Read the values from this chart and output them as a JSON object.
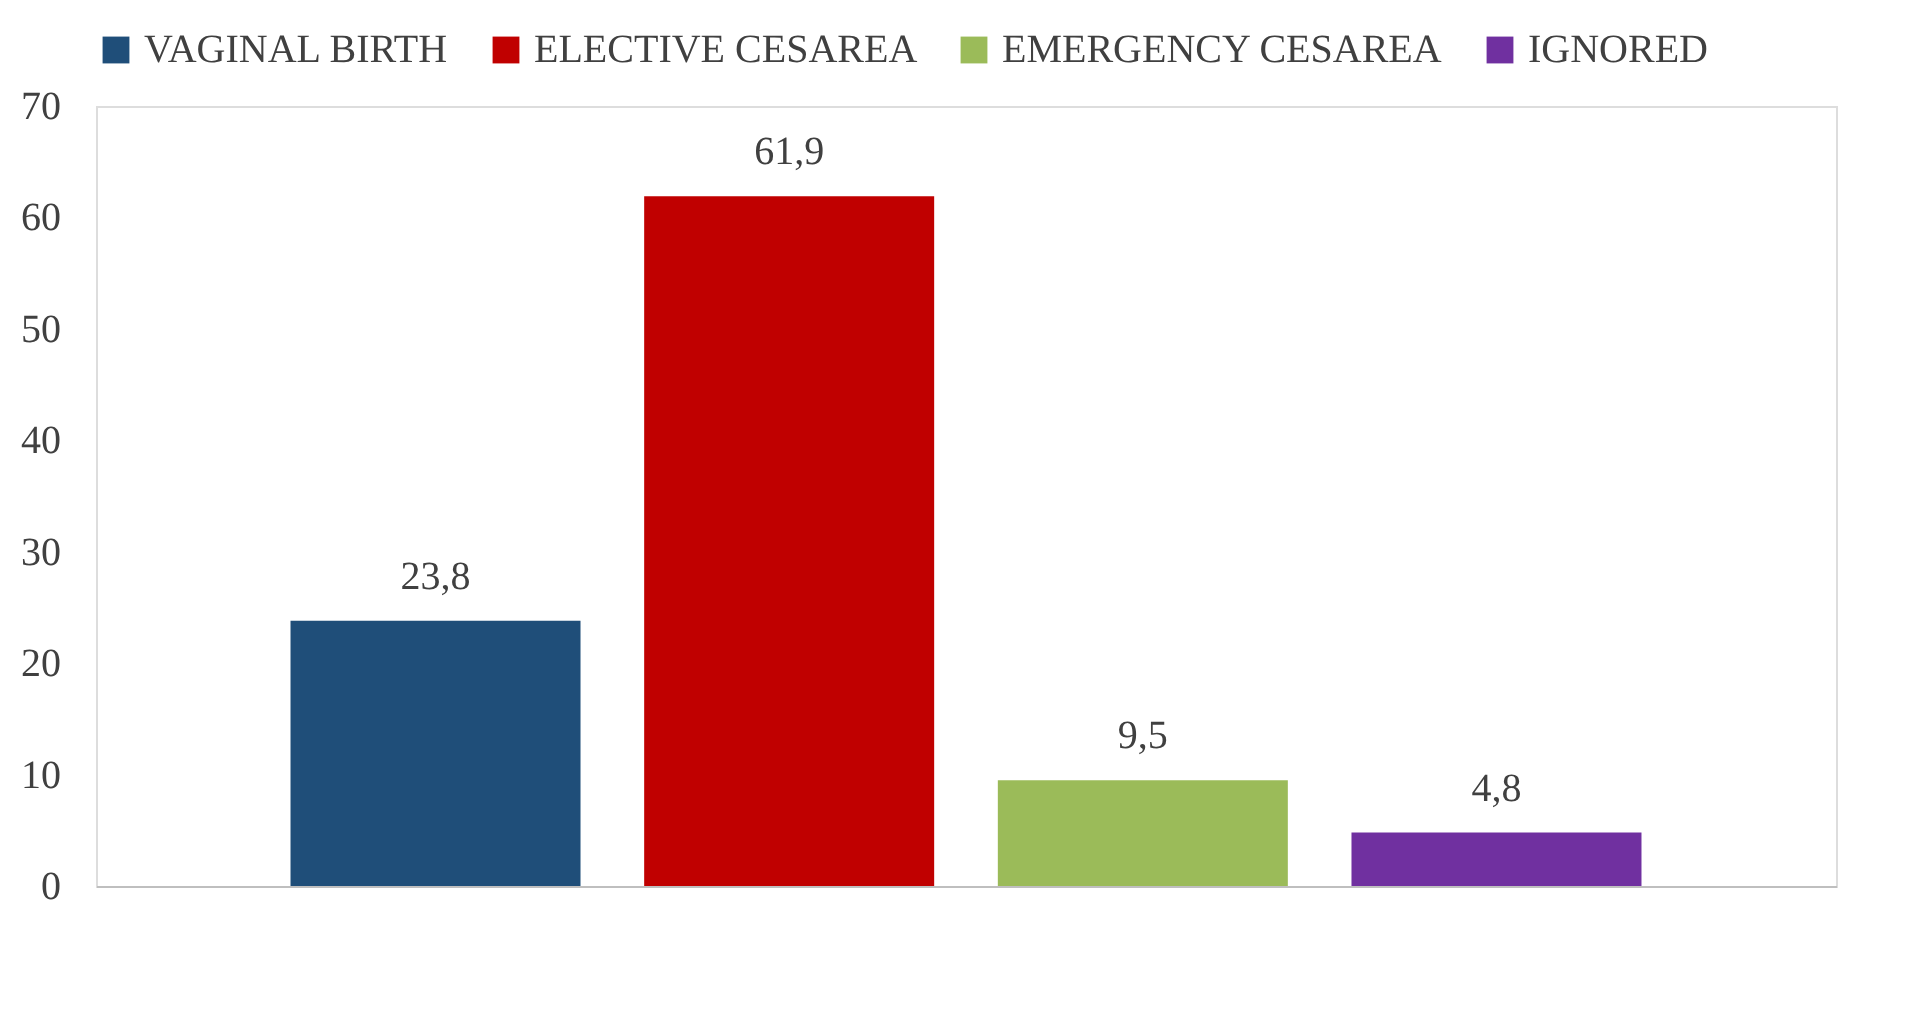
{
  "chart_data": {
    "type": "bar",
    "categories": [
      null,
      null,
      null,
      null
    ],
    "series": [
      {
        "name": "VAGINAL BIRTH",
        "color": "#1f4e79",
        "values": [
          23.8,
          null,
          null,
          null
        ],
        "value_labels": [
          "23,8",
          null,
          null,
          null
        ]
      },
      {
        "name": "ELECTIVE CESAREA",
        "color": "#c00000",
        "values": [
          null,
          61.9,
          null,
          null
        ],
        "value_labels": [
          null,
          "61,9",
          null,
          null
        ]
      },
      {
        "name": "EMERGENCY CESAREA",
        "color": "#9bbb59",
        "values": [
          null,
          null,
          9.5,
          null
        ],
        "value_labels": [
          null,
          null,
          "9,5",
          null
        ]
      },
      {
        "name": "IGNORED",
        "color": "#7030a0",
        "values": [
          null,
          null,
          null,
          4.8
        ],
        "value_labels": [
          null,
          null,
          null,
          "4,8"
        ]
      }
    ],
    "ylim": [
      0,
      70
    ],
    "yticks": [
      0,
      10,
      20,
      30,
      40,
      50,
      60,
      70
    ],
    "grid": false,
    "legend": "top"
  }
}
